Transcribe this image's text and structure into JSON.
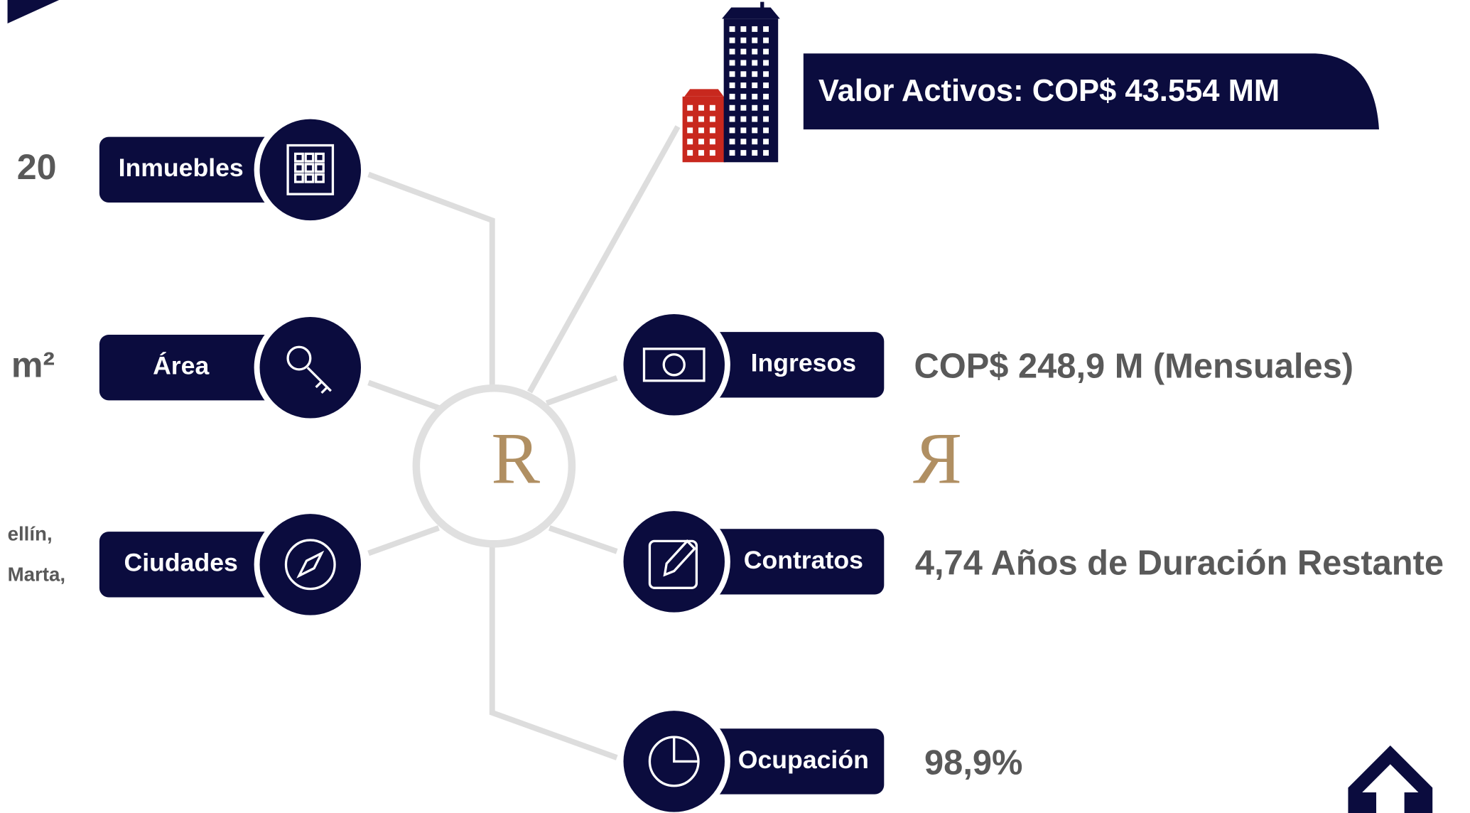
{
  "banner": "Valor Activos: COP$ 43.554 MM",
  "logo": [
    "R",
    "R"
  ],
  "left": [
    {
      "label": "Inmuebles",
      "value_lines": [
        "20"
      ]
    },
    {
      "label": "Área",
      "value_lines": [
        "m²"
      ]
    },
    {
      "label": "Ciudades",
      "value_lines": [
        "ellín,",
        "Marta,"
      ]
    }
  ],
  "right": [
    {
      "label": "Ingresos",
      "value": "COP$ 248,9 M (Mensuales)"
    },
    {
      "label": "Contratos",
      "value": "4,74 Años de Duración Restante"
    },
    {
      "label": "Ocupación",
      "value": "98,9%"
    }
  ]
}
